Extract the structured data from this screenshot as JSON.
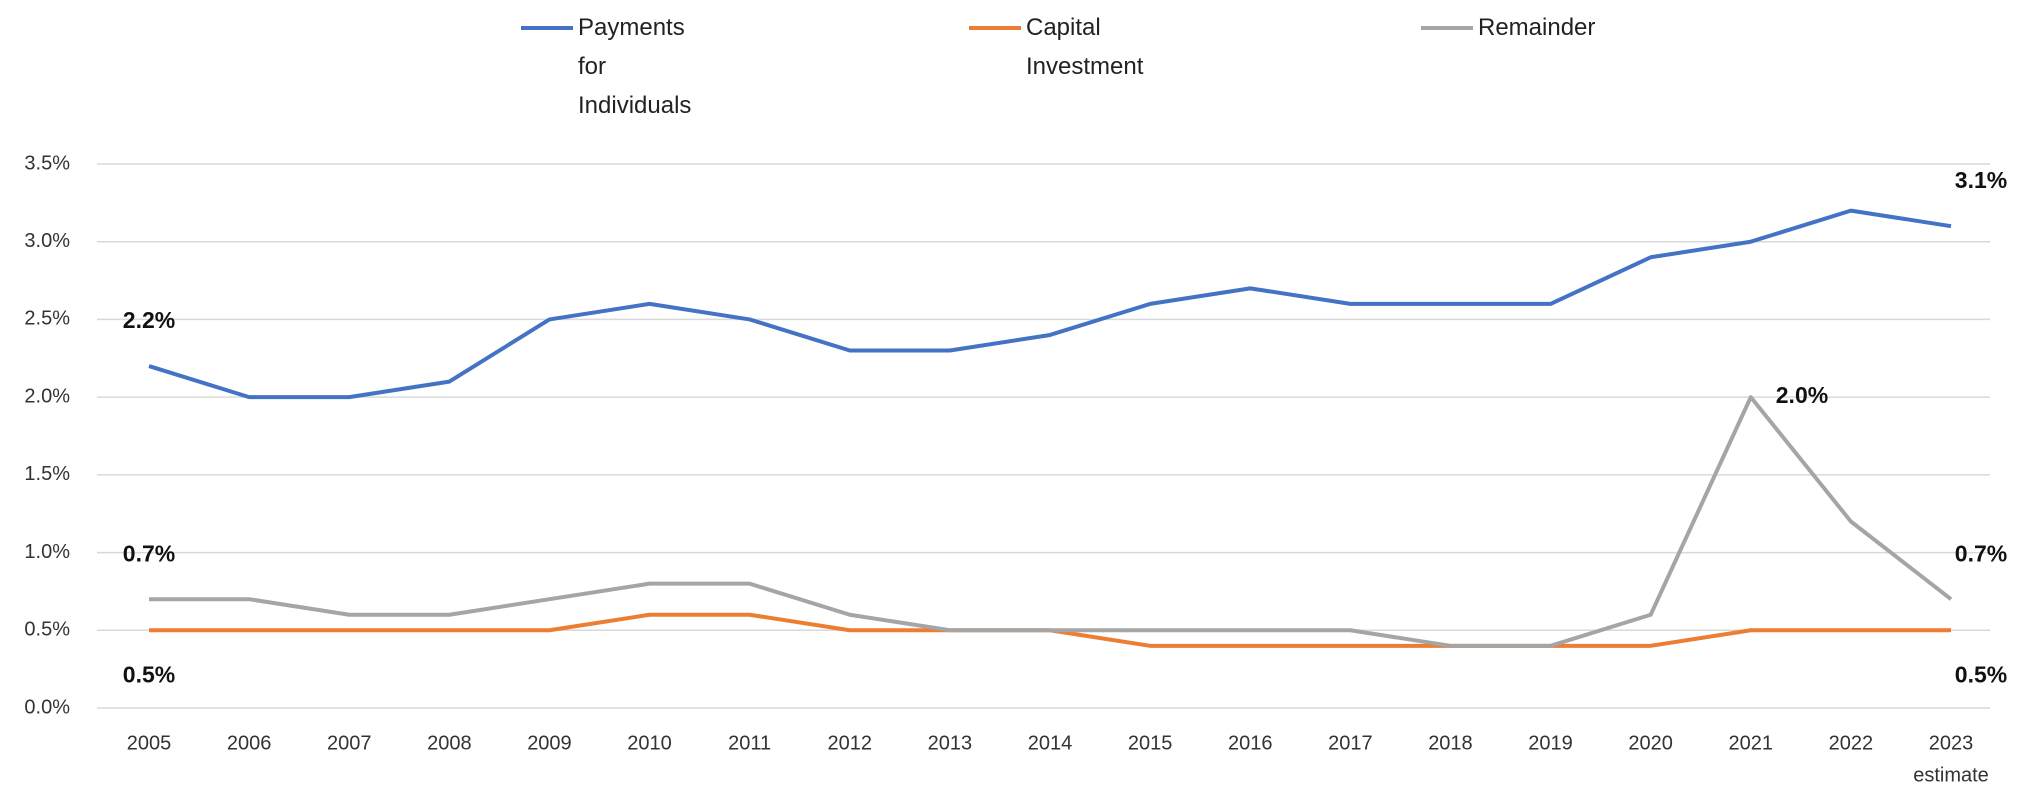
{
  "chart_data": {
    "type": "line",
    "categories": [
      "2005",
      "2006",
      "2007",
      "2008",
      "2009",
      "2010",
      "2011",
      "2012",
      "2013",
      "2014",
      "2015",
      "2016",
      "2017",
      "2018",
      "2019",
      "2020",
      "2021",
      "2022",
      "2023"
    ],
    "category_note": "estimate",
    "series": [
      {
        "name": "Payments for Individuals",
        "color": "#4472c4",
        "values": [
          2.2,
          2.0,
          2.0,
          2.1,
          2.5,
          2.6,
          2.5,
          2.3,
          2.3,
          2.4,
          2.6,
          2.7,
          2.6,
          2.6,
          2.6,
          2.9,
          3.0,
          3.2,
          3.1
        ],
        "value_labels": [
          "2.2%",
          null,
          null,
          null,
          null,
          null,
          null,
          null,
          null,
          null,
          null,
          null,
          null,
          null,
          null,
          null,
          null,
          null,
          "3.1%"
        ]
      },
      {
        "name": "Capital Investment",
        "color": "#ed7d31",
        "values": [
          0.5,
          0.5,
          0.5,
          0.5,
          0.5,
          0.6,
          0.6,
          0.5,
          0.5,
          0.5,
          0.4,
          0.4,
          0.4,
          0.4,
          0.4,
          0.4,
          0.5,
          0.5,
          0.5
        ],
        "value_labels": [
          "0.5%",
          null,
          null,
          null,
          null,
          null,
          null,
          null,
          null,
          null,
          null,
          null,
          null,
          null,
          null,
          null,
          null,
          null,
          "0.5%"
        ]
      },
      {
        "name": "Remainder",
        "color": "#a5a5a5",
        "values": [
          0.7,
          0.7,
          0.6,
          0.6,
          0.7,
          0.8,
          0.8,
          0.6,
          0.5,
          0.5,
          0.5,
          0.5,
          0.5,
          0.4,
          0.4,
          0.6,
          2.0,
          1.2,
          0.7
        ],
        "value_labels": [
          "0.7%",
          null,
          null,
          null,
          null,
          null,
          null,
          null,
          null,
          null,
          null,
          null,
          null,
          null,
          null,
          null,
          "2.0%",
          null,
          "0.7%"
        ]
      }
    ],
    "ylim": [
      0,
      3.5
    ],
    "yticks": [
      {
        "value": 0,
        "label": "0.0%"
      },
      {
        "value": 0.5,
        "label": "0.5%"
      },
      {
        "value": 1,
        "label": "1.0%"
      },
      {
        "value": 1.5,
        "label": "1.5%"
      },
      {
        "value": 2,
        "label": "2.0%"
      },
      {
        "value": 2.5,
        "label": "2.5%"
      },
      {
        "value": 3,
        "label": "3.0%"
      },
      {
        "value": 3.5,
        "label": "3.5%"
      }
    ],
    "grid": true,
    "legend": "top"
  }
}
